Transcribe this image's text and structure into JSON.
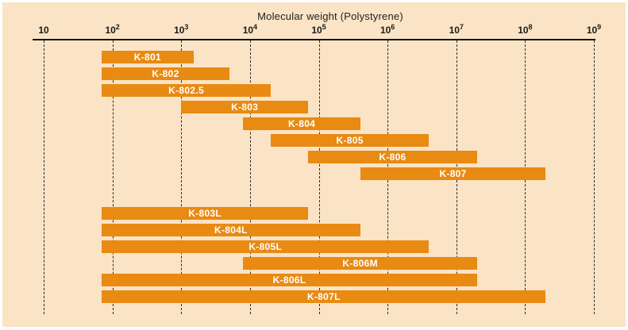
{
  "figure": {
    "title": "Molecular weight (Polystyrene)"
  },
  "chart_data": {
    "type": "bar",
    "subtype": "horizontal-range",
    "title": "Molecular weight (Polystyrene)",
    "x_scale": "log10",
    "xlim": [
      10,
      1000000000
    ],
    "x_ticks": [
      10,
      100,
      1000,
      10000,
      100000,
      1000000,
      10000000,
      100000000,
      1000000000
    ],
    "x_tick_labels": [
      "10",
      "10^2",
      "10^3",
      "10^4",
      "10^5",
      "10^6",
      "10^7",
      "10^8",
      "10^9"
    ],
    "grid": "vertical-dashed",
    "legend": "none",
    "bars": [
      {
        "label": "K-801",
        "start": 70,
        "end": 1500,
        "group": 1
      },
      {
        "label": "K-802",
        "start": 70,
        "end": 5000,
        "group": 1
      },
      {
        "label": "K-802.5",
        "start": 70,
        "end": 20000,
        "group": 1
      },
      {
        "label": "K-803",
        "start": 1000,
        "end": 70000,
        "group": 1
      },
      {
        "label": "K-804",
        "start": 8000,
        "end": 400000,
        "group": 1
      },
      {
        "label": "K-805",
        "start": 20000,
        "end": 4000000,
        "group": 1
      },
      {
        "label": "K-806",
        "start": 70000,
        "end": 20000000,
        "group": 1
      },
      {
        "label": "K-807",
        "start": 400000,
        "end": 200000000,
        "group": 1
      },
      {
        "label": "K-803L",
        "start": 70,
        "end": 70000,
        "group": 2
      },
      {
        "label": "K-804L",
        "start": 70,
        "end": 400000,
        "group": 2
      },
      {
        "label": "K-805L",
        "start": 70,
        "end": 4000000,
        "group": 2
      },
      {
        "label": "K-806M",
        "start": 8000,
        "end": 20000000,
        "group": 2
      },
      {
        "label": "K-806L",
        "start": 70,
        "end": 20000000,
        "group": 2
      },
      {
        "label": "K-807L",
        "start": 70,
        "end": 200000000,
        "group": 2
      }
    ],
    "colors": {
      "bar": "#E98A12",
      "bar_label": "#FFFFFF",
      "background": "#FAE4C5",
      "axis": "#151515",
      "grid": "#2B2B2B",
      "frame": "#FFFFFF"
    }
  }
}
